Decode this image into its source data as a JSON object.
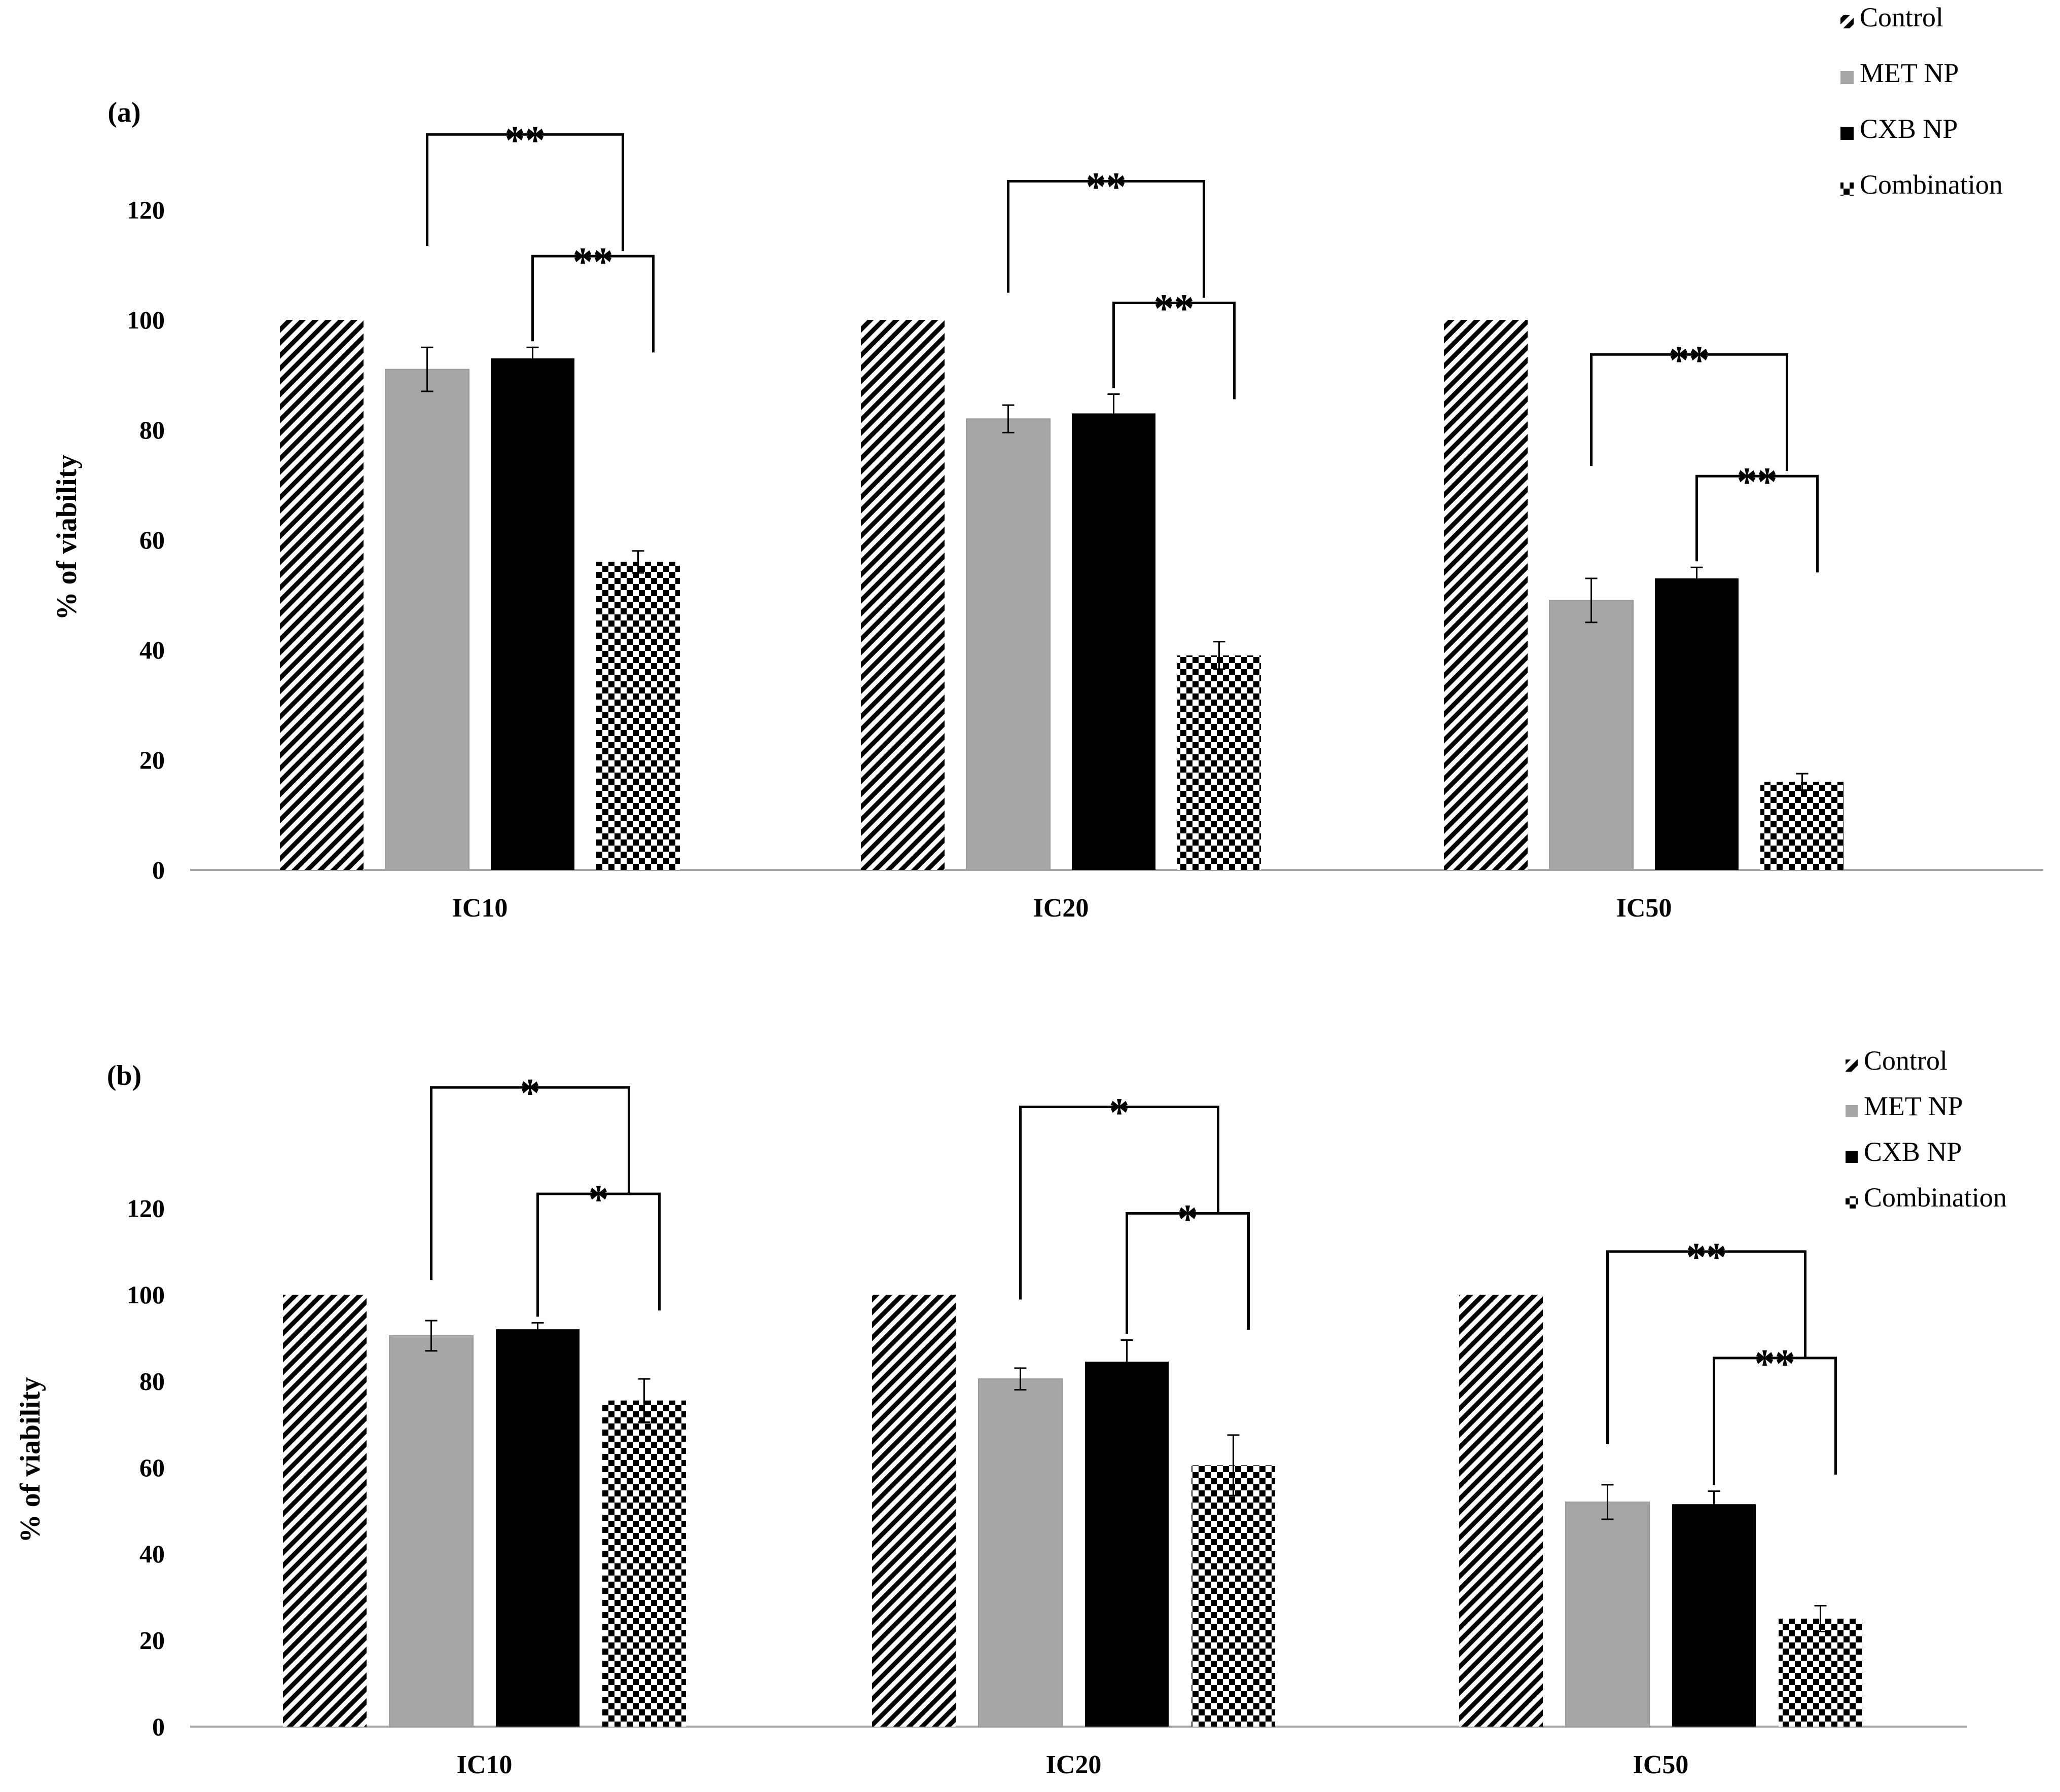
{
  "chart_data": [
    {
      "type": "bar",
      "panel": "(a)",
      "ylabel": "% of viability",
      "ylim": [
        0,
        120
      ],
      "yticks": [
        0,
        20,
        40,
        60,
        80,
        100,
        120
      ],
      "categories": [
        "IC10",
        "IC20",
        "IC50"
      ],
      "series": [
        {
          "name": "Control",
          "values": [
            100,
            100,
            100
          ],
          "errors": [
            0,
            0,
            0
          ]
        },
        {
          "name": "MET NP",
          "values": [
            91,
            82,
            49
          ],
          "errors": [
            4,
            2.5,
            4
          ]
        },
        {
          "name": "CXB NP",
          "values": [
            93,
            83,
            53
          ],
          "errors": [
            2,
            3.5,
            2
          ]
        },
        {
          "name": "Combination",
          "values": [
            56,
            39,
            16
          ],
          "errors": [
            2,
            2.5,
            1.5
          ]
        }
      ],
      "legend": [
        "Control",
        "MET NP",
        "CXB NP",
        "Combination"
      ],
      "legend_position": "top-right",
      "annotations": [
        {
          "category": "IC10",
          "from": "MET NP",
          "to": "Combination",
          "label": "**"
        },
        {
          "category": "IC10",
          "from": "CXB NP",
          "to": "Combination",
          "label": "**"
        },
        {
          "category": "IC20",
          "from": "MET NP",
          "to": "Combination",
          "label": "**"
        },
        {
          "category": "IC20",
          "from": "CXB NP",
          "to": "Combination",
          "label": "**"
        },
        {
          "category": "IC50",
          "from": "MET NP",
          "to": "Combination",
          "label": "**"
        },
        {
          "category": "IC50",
          "from": "CXB NP",
          "to": "Combination",
          "label": "**"
        }
      ]
    },
    {
      "type": "bar",
      "panel": "(b)",
      "ylabel": "% of viability",
      "ylim": [
        0,
        120
      ],
      "yticks": [
        0,
        20,
        40,
        60,
        80,
        100,
        120
      ],
      "categories": [
        "IC10",
        "IC20",
        "IC50"
      ],
      "series": [
        {
          "name": "Control",
          "values": [
            100,
            100,
            100
          ],
          "errors": [
            0,
            0,
            0
          ]
        },
        {
          "name": "MET NP",
          "values": [
            90.5,
            80.5,
            52
          ],
          "errors": [
            3.5,
            2.5,
            4
          ]
        },
        {
          "name": "CXB NP",
          "values": [
            92,
            84.5,
            51.5
          ],
          "errors": [
            1.5,
            5,
            3
          ]
        },
        {
          "name": "Combination",
          "values": [
            75.5,
            60.5,
            25
          ],
          "errors": [
            5,
            7,
            3
          ]
        }
      ],
      "legend": [
        "Control",
        "MET NP",
        "CXB NP",
        "Combination"
      ],
      "legend_position": "top-right",
      "annotations": [
        {
          "category": "IC10",
          "from": "MET NP",
          "to": "Combination",
          "label": "*"
        },
        {
          "category": "IC10",
          "from": "CXB NP",
          "to": "Combination",
          "label": "*"
        },
        {
          "category": "IC20",
          "from": "MET NP",
          "to": "Combination",
          "label": "*"
        },
        {
          "category": "IC20",
          "from": "CXB NP",
          "to": "Combination",
          "label": "*"
        },
        {
          "category": "IC50",
          "from": "MET NP",
          "to": "Combination",
          "label": "**"
        },
        {
          "category": "IC50",
          "from": "CXB NP",
          "to": "Combination",
          "label": "**"
        }
      ]
    }
  ],
  "colors": {
    "met_np": "#a6a6a6",
    "cxb_np": "#000000",
    "axis": "#a6a6a6"
  }
}
